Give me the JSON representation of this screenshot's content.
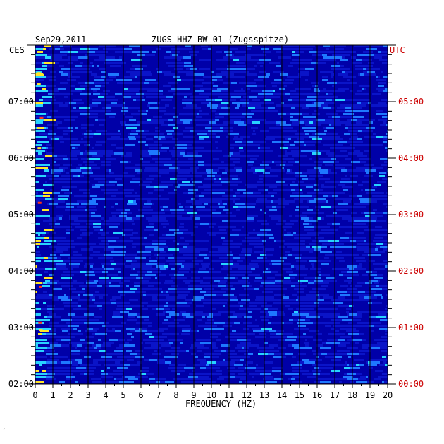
{
  "chart_data": {
    "type": "heatmap",
    "date_label": "Sep29,2011",
    "station_label": "ZUGS HHZ BW 01 (Zugsspitze)",
    "left_tz_label": "CES",
    "right_tz_label": "UTC",
    "xlabel": "FREQUENCY (HZ)",
    "x_ticks": [
      "0",
      "1",
      "2",
      "3",
      "4",
      "5",
      "6",
      "7",
      "8",
      "9",
      "10",
      "11",
      "12",
      "13",
      "14",
      "15",
      "16",
      "17",
      "18",
      "19",
      "20"
    ],
    "xlim": [
      0,
      20
    ],
    "left_time_ticks": [
      "07:00",
      "06:00",
      "05:00",
      "04:00",
      "03:00",
      "02:00"
    ],
    "right_time_ticks": [
      "05:00",
      "04:00",
      "03:00",
      "02:00",
      "01:00",
      "00:00"
    ],
    "time_range_hours": 6,
    "colors": {
      "background": "#0000a8",
      "low": "#0a14c8",
      "mid": "#1e78ff",
      "high": "#28d2ff",
      "warm": "#ffe628",
      "hot": "#ff3214",
      "utc_text": "#cc0000"
    },
    "footer_mark": "′"
  }
}
